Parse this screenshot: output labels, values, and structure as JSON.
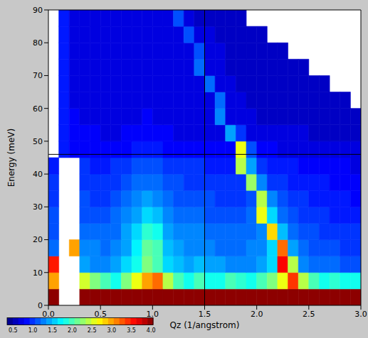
{
  "chart_data": {
    "type": "heatmap",
    "x_label": "Qz (1/angstrom)",
    "y_label": "Energy (meV)",
    "xlim": [
      0,
      3
    ],
    "ylim": [
      0,
      90
    ],
    "xticks": [
      {
        "value": 0,
        "label": "0.0"
      },
      0.5,
      {
        "value": 1,
        "label": "1.0"
      },
      1.5,
      {
        "value": 2,
        "label": "2.0"
      },
      2.5,
      {
        "value": 3,
        "label": "3.0"
      }
    ],
    "yticks": [
      0,
      10,
      20,
      30,
      40,
      50,
      60,
      70,
      80,
      90
    ],
    "x_bins": [
      0,
      0.1,
      0.2,
      0.3,
      0.4,
      0.5,
      0.6,
      0.7,
      0.8,
      0.9,
      1,
      1.1,
      1.2,
      1.3,
      1.4,
      1.5,
      1.6,
      1.7,
      1.8,
      1.9,
      2,
      2.1,
      2.2,
      2.3,
      2.4,
      2.5,
      2.6,
      2.7,
      2.8,
      2.9,
      3
    ],
    "y_bins": [
      0,
      5,
      10,
      15,
      20,
      25,
      30,
      35,
      40,
      45,
      50,
      55,
      60,
      65,
      70,
      75,
      80,
      85,
      90
    ],
    "cells": [
      [
        4,
        null,
        null,
        4,
        4,
        4,
        4,
        4,
        4,
        4,
        4,
        4,
        4,
        4,
        4,
        4,
        4,
        4,
        4,
        4,
        4,
        4,
        4,
        4,
        4,
        4,
        4,
        4,
        4,
        4
      ],
      [
        3,
        null,
        null,
        2.5,
        2.2,
        2.0,
        1.8,
        2.2,
        2.6,
        3.0,
        3.2,
        2.4,
        2.0,
        1.8,
        2.0,
        1.8,
        1.8,
        2.0,
        1.9,
        1.8,
        2.0,
        2.2,
        2.6,
        3.4,
        2.4,
        2.0,
        1.8,
        1.9,
        1.8,
        1.8
      ],
      [
        3.5,
        null,
        null,
        1.4,
        1.3,
        1.3,
        1.4,
        1.6,
        1.8,
        2.2,
        2.0,
        1.6,
        1.5,
        1.4,
        1.5,
        1.4,
        1.4,
        1.3,
        1.3,
        1.3,
        1.4,
        1.6,
        3.6,
        2.4,
        1.3,
        1.2,
        1.2,
        1.2,
        1.1,
        1.1
      ],
      [
        1.2,
        null,
        3.0,
        1.3,
        1.3,
        1.2,
        1.3,
        1.4,
        1.7,
        2.1,
        2.0,
        1.5,
        1.4,
        1.3,
        1.3,
        1.3,
        1.2,
        1.2,
        1.2,
        1.3,
        1.3,
        1.6,
        3.2,
        1.4,
        1.2,
        1.1,
        1.1,
        1.1,
        1.0,
        1.0
      ],
      [
        1.1,
        null,
        null,
        1.2,
        1.2,
        1.2,
        1.2,
        1.4,
        1.6,
        1.9,
        1.8,
        1.4,
        1.3,
        1.3,
        1.3,
        1.2,
        1.2,
        1.2,
        1.2,
        1.2,
        1.3,
        2.8,
        1.5,
        1.2,
        1.1,
        1.1,
        1.0,
        1.0,
        1.0,
        1.0
      ],
      [
        1.1,
        null,
        null,
        1.1,
        1.1,
        1.1,
        1.2,
        1.3,
        1.4,
        1.6,
        1.5,
        1.3,
        1.2,
        1.2,
        1.2,
        1.1,
        1.1,
        1.1,
        1.1,
        1.2,
        2.6,
        1.6,
        1.2,
        1.1,
        1.0,
        1.0,
        1.0,
        0.9,
        0.9,
        0.9
      ],
      [
        1.0,
        null,
        null,
        1.1,
        1.0,
        1.0,
        1.1,
        1.2,
        1.3,
        1.4,
        1.3,
        1.2,
        1.1,
        1.1,
        1.1,
        1.1,
        1.0,
        1.0,
        1.0,
        1.1,
        2.4,
        1.3,
        1.1,
        1.0,
        1.0,
        0.9,
        0.9,
        0.9,
        0.9,
        0.8
      ],
      [
        1.0,
        null,
        null,
        1.0,
        1.0,
        1.0,
        1.0,
        1.1,
        1.2,
        1.2,
        1.2,
        1.1,
        1.1,
        1.0,
        1.0,
        1.0,
        1.0,
        1.0,
        1.0,
        2.3,
        1.3,
        1.0,
        1.0,
        0.9,
        0.9,
        0.9,
        0.9,
        0.8,
        0.8,
        0.8
      ],
      [
        0.9,
        null,
        null,
        1.0,
        0.9,
        0.9,
        1.0,
        1.0,
        1.1,
        1.1,
        1.1,
        1.0,
        1.0,
        1.0,
        1.0,
        0.9,
        0.9,
        0.9,
        2.4,
        1.4,
        1.0,
        0.9,
        0.9,
        0.9,
        0.8,
        0.8,
        0.8,
        0.8,
        0.8,
        0.7
      ],
      [
        null,
        0.9,
        0.8,
        0.8,
        0.8,
        0.8,
        0.8,
        0.8,
        0.9,
        0.9,
        0.9,
        0.8,
        0.8,
        0.8,
        0.8,
        0.8,
        0.8,
        0.8,
        2.6,
        1.1,
        0.8,
        0.8,
        0.7,
        0.7,
        0.7,
        0.7,
        0.7,
        0.7,
        0.7,
        0.7
      ],
      [
        null,
        0.9,
        0.8,
        0.8,
        0.8,
        0.7,
        0.7,
        0.8,
        0.8,
        0.8,
        0.8,
        0.8,
        0.7,
        0.7,
        0.7,
        0.7,
        0.7,
        1.4,
        1.0,
        0.7,
        0.7,
        0.7,
        0.7,
        0.7,
        0.7,
        0.6,
        0.6,
        0.6,
        0.6,
        0.6
      ],
      [
        null,
        0.9,
        0.8,
        0.7,
        0.7,
        0.7,
        0.7,
        0.7,
        0.7,
        0.8,
        0.7,
        0.7,
        0.7,
        0.7,
        0.7,
        0.7,
        1.3,
        0.7,
        0.7,
        0.7,
        0.6,
        0.6,
        0.6,
        0.6,
        0.6,
        0.6,
        0.6,
        0.6,
        0.6,
        0.6
      ],
      [
        null,
        0.9,
        0.7,
        0.7,
        0.7,
        0.7,
        0.7,
        0.7,
        0.7,
        0.7,
        0.7,
        0.7,
        0.7,
        0.7,
        0.7,
        0.7,
        1.2,
        0.7,
        0.7,
        0.6,
        0.6,
        0.6,
        0.6,
        0.6,
        0.6,
        0.6,
        0.6,
        0.6,
        0.6,
        null
      ],
      [
        null,
        0.9,
        0.7,
        0.7,
        0.7,
        0.7,
        0.7,
        0.7,
        0.7,
        0.7,
        0.7,
        0.7,
        0.7,
        0.7,
        0.7,
        1.2,
        0.7,
        0.7,
        0.6,
        0.6,
        0.6,
        0.6,
        0.6,
        0.6,
        0.6,
        0.6,
        0.6,
        null,
        null,
        null
      ],
      [
        null,
        0.9,
        0.7,
        0.7,
        0.7,
        0.7,
        0.7,
        0.7,
        0.7,
        0.7,
        0.7,
        0.7,
        0.7,
        0.7,
        1.2,
        0.7,
        0.7,
        0.6,
        0.6,
        0.6,
        0.6,
        0.6,
        0.6,
        0.6,
        0.6,
        null,
        null,
        null,
        null,
        null
      ],
      [
        null,
        0.9,
        0.7,
        0.7,
        0.7,
        0.7,
        0.7,
        0.7,
        0.7,
        0.7,
        0.7,
        0.7,
        0.7,
        0.7,
        1.1,
        0.7,
        0.7,
        0.6,
        0.6,
        0.6,
        0.6,
        0.6,
        0.6,
        null,
        null,
        null,
        null,
        null,
        null,
        null
      ],
      [
        null,
        0.9,
        0.7,
        0.7,
        0.7,
        0.7,
        0.7,
        0.7,
        0.7,
        0.7,
        0.7,
        0.7,
        0.7,
        1.1,
        0.7,
        0.7,
        0.6,
        0.6,
        0.6,
        0.6,
        0.6,
        null,
        null,
        null,
        null,
        null,
        null,
        null,
        null,
        null
      ],
      [
        null,
        0.9,
        0.7,
        0.7,
        0.7,
        0.7,
        0.7,
        0.7,
        0.7,
        0.7,
        0.7,
        0.7,
        1.1,
        0.7,
        0.6,
        0.6,
        0.6,
        0.6,
        0.6,
        null,
        null,
        null,
        null,
        null,
        null,
        null,
        null,
        null,
        null,
        null
      ]
    ],
    "colorbar_range": [
      0.35,
      4.05
    ],
    "colorbar_ticks": [
      0.5,
      {
        "value": 1,
        "label": "1.0"
      },
      1.5,
      {
        "value": 2,
        "label": "2.0"
      },
      2.5,
      {
        "value": 3,
        "label": "3.0"
      },
      3.5,
      {
        "value": 4,
        "label": "4.0"
      }
    ],
    "crosshair": {
      "x": 1.5,
      "y": 46
    }
  }
}
